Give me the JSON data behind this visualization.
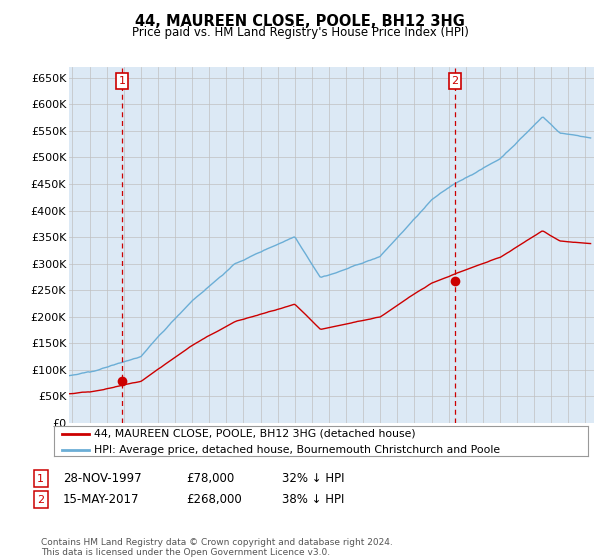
{
  "title": "44, MAUREEN CLOSE, POOLE, BH12 3HG",
  "subtitle": "Price paid vs. HM Land Registry's House Price Index (HPI)",
  "ylabel_ticks": [
    "£0",
    "£50K",
    "£100K",
    "£150K",
    "£200K",
    "£250K",
    "£300K",
    "£350K",
    "£400K",
    "£450K",
    "£500K",
    "£550K",
    "£600K",
    "£650K"
  ],
  "ytick_values": [
    0,
    50000,
    100000,
    150000,
    200000,
    250000,
    300000,
    350000,
    400000,
    450000,
    500000,
    550000,
    600000,
    650000
  ],
  "ylim": [
    0,
    670000
  ],
  "xlim_start": 1994.8,
  "xlim_end": 2025.5,
  "sale1_date": 1997.91,
  "sale1_price": 78000,
  "sale1_label": "1",
  "sale2_date": 2017.37,
  "sale2_price": 268000,
  "sale2_label": "2",
  "hpi_color": "#6baed6",
  "price_color": "#cc0000",
  "chart_bg": "#dce9f5",
  "legend_label1": "44, MAUREEN CLOSE, POOLE, BH12 3HG (detached house)",
  "legend_label2": "HPI: Average price, detached house, Bournemouth Christchurch and Poole",
  "footnote": "Contains HM Land Registry data © Crown copyright and database right 2024.\nThis data is licensed under the Open Government Licence v3.0.",
  "background_color": "#ffffff",
  "grid_color": "#c0c0c0"
}
